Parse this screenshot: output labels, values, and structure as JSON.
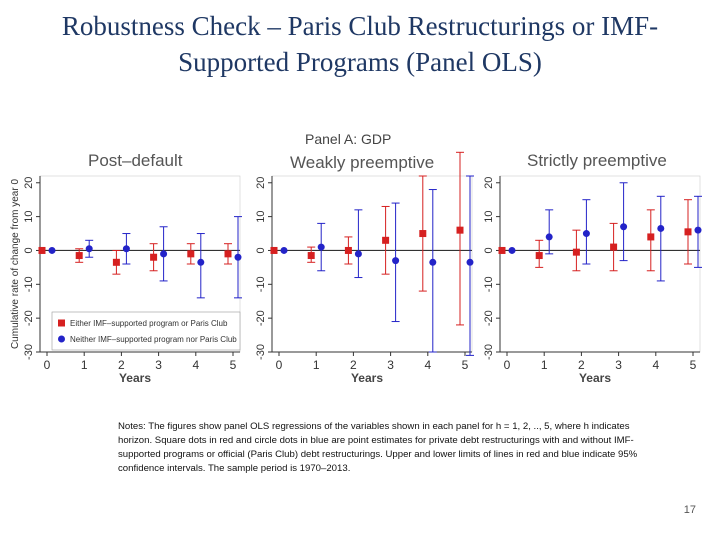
{
  "slide": {
    "title": "Robustness Check – Paris Club Restructurings or IMF-Supported Programs (Panel OLS)",
    "notes": "Notes: The figures show panel OLS regressions of the variables shown in each panel for h = 1, 2, .., 5, where h indicates horizon. Square dots in red and circle dots in blue are point estimates for private debt restructurings with and without IMF-supported programs or official (Paris Club) debt restructurings. Upper and lower limits of lines in red and blue indicate 95% confidence intervals. The sample period is 1970–2013.",
    "page_number": "17"
  },
  "colors": {
    "red": "#d62020",
    "blue": "#2323c8",
    "zero_line": "#333333",
    "panel_bg": "#ffffff"
  },
  "chart_data": {
    "type": "scatter",
    "title": "Panel A: GDP",
    "ylabel": "Cumulative rate of change from year 0",
    "xlabel": "Years",
    "x_ticks": [
      0,
      1,
      2,
      3,
      4,
      5
    ],
    "y_ticks": [
      -30,
      -20,
      -10,
      0,
      10,
      20
    ],
    "ylim": [
      -30,
      22
    ],
    "grid": false,
    "legend": {
      "placement": "bottom-left of first panel",
      "entries": [
        {
          "marker": "square",
          "color": "red",
          "label": "Either IMF–supported program or Paris Club"
        },
        {
          "marker": "circle",
          "color": "blue",
          "label": "Neither IMF–supported program nor Paris Club"
        }
      ]
    },
    "panels": [
      {
        "title": "Post–default",
        "series": [
          {
            "name": "Either IMF–supported program or Paris Club",
            "marker": "square",
            "color": "red",
            "x": [
              0,
              1,
              2,
              3,
              4,
              5
            ],
            "y": [
              0,
              -1.5,
              -3.5,
              -2,
              -1,
              -1
            ],
            "lower": [
              0,
              -3.5,
              -7,
              -6,
              -4,
              -4
            ],
            "upper": [
              0,
              0.5,
              0,
              2,
              2,
              2
            ]
          },
          {
            "name": "Neither IMF–supported program nor Paris Club",
            "marker": "circle",
            "color": "blue",
            "x": [
              0,
              1,
              2,
              3,
              4,
              5
            ],
            "y": [
              0,
              0.5,
              0.5,
              -1,
              -3.5,
              -2
            ],
            "lower": [
              0,
              -2,
              -4,
              -9,
              -14,
              -14
            ],
            "upper": [
              0,
              3,
              5,
              7,
              5,
              10
            ]
          }
        ]
      },
      {
        "title": "Weakly preemptive",
        "series": [
          {
            "name": "Either IMF–supported program or Paris Club",
            "marker": "square",
            "color": "red",
            "x": [
              0,
              1,
              2,
              3,
              4,
              5
            ],
            "y": [
              0,
              -1.5,
              0,
              3,
              5,
              6
            ],
            "lower": [
              0,
              -3.5,
              -4,
              -7,
              -12,
              -22
            ],
            "upper": [
              0,
              1,
              4,
              13,
              22,
              29
            ]
          },
          {
            "name": "Neither IMF–supported program nor Paris Club",
            "marker": "circle",
            "color": "blue",
            "x": [
              0,
              1,
              2,
              3,
              4,
              5
            ],
            "y": [
              0,
              1,
              -1,
              -3,
              -3.5,
              -3.5
            ],
            "lower": [
              0,
              -6,
              -8,
              -21,
              -30,
              -31
            ],
            "upper": [
              0,
              8,
              12,
              14,
              18,
              22
            ]
          }
        ]
      },
      {
        "title": "Strictly preemptive",
        "series": [
          {
            "name": "Either IMF–supported program or Paris Club",
            "marker": "square",
            "color": "red",
            "x": [
              0,
              1,
              2,
              3,
              4,
              5
            ],
            "y": [
              0,
              -1.5,
              -0.5,
              1,
              4,
              5.5
            ],
            "lower": [
              0,
              -5,
              -6,
              -6,
              -6,
              -4
            ],
            "upper": [
              0,
              3,
              6,
              8,
              12,
              15
            ]
          },
          {
            "name": "Neither IMF–supported program nor Paris Club",
            "marker": "circle",
            "color": "blue",
            "x": [
              0,
              1,
              2,
              3,
              4,
              5
            ],
            "y": [
              0,
              4,
              5,
              7,
              6.5,
              6
            ],
            "lower": [
              0,
              -1,
              -4,
              -3,
              -9,
              -5
            ],
            "upper": [
              0,
              12,
              15,
              20,
              16,
              16
            ]
          }
        ]
      }
    ]
  }
}
